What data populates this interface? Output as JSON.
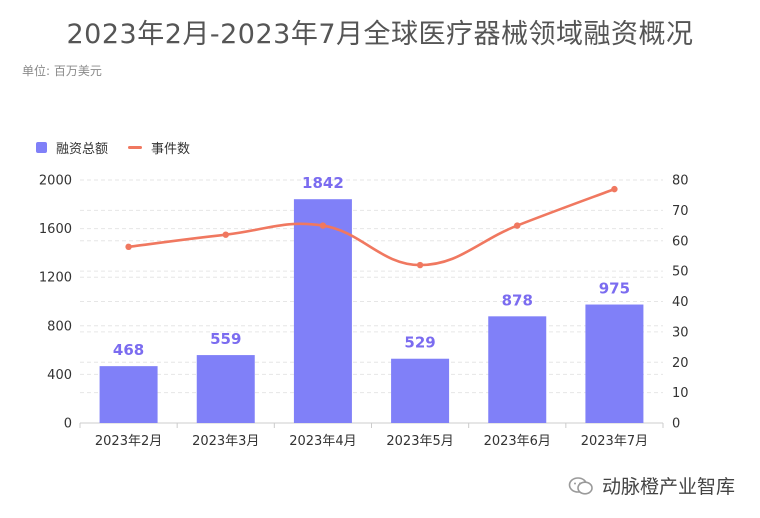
{
  "title": "2023年2月-2023年7月全球医疗器械领域融资概况",
  "unit": "单位: 百万美元",
  "watermark": "动脉橙产业智库",
  "colors": {
    "bar": "#8080f8",
    "bar_label": "#7b6cf0",
    "line": "#f07860",
    "grid": "#e6e6e6",
    "axis_text": "#333333"
  },
  "chart_data": {
    "type": "bar",
    "categories": [
      "2023年2月",
      "2023年3月",
      "2023年4月",
      "2023年5月",
      "2023年6月",
      "2023年7月"
    ],
    "series": [
      {
        "name": "融资总额",
        "type": "bar",
        "axis": "left",
        "values": [
          468,
          559,
          1842,
          529,
          878,
          975
        ]
      },
      {
        "name": "事件数",
        "type": "line",
        "axis": "right",
        "values": [
          58,
          62,
          65,
          52,
          65,
          77
        ]
      }
    ],
    "ylim_left": [
      0,
      2000
    ],
    "yticks_left": [
      0,
      400,
      800,
      1200,
      1600,
      2000
    ],
    "ylim_right": [
      0,
      80
    ],
    "yticks_right": [
      0,
      10,
      20,
      30,
      40,
      50,
      60,
      70,
      80
    ],
    "legend_position": "top-left",
    "grid": true
  }
}
